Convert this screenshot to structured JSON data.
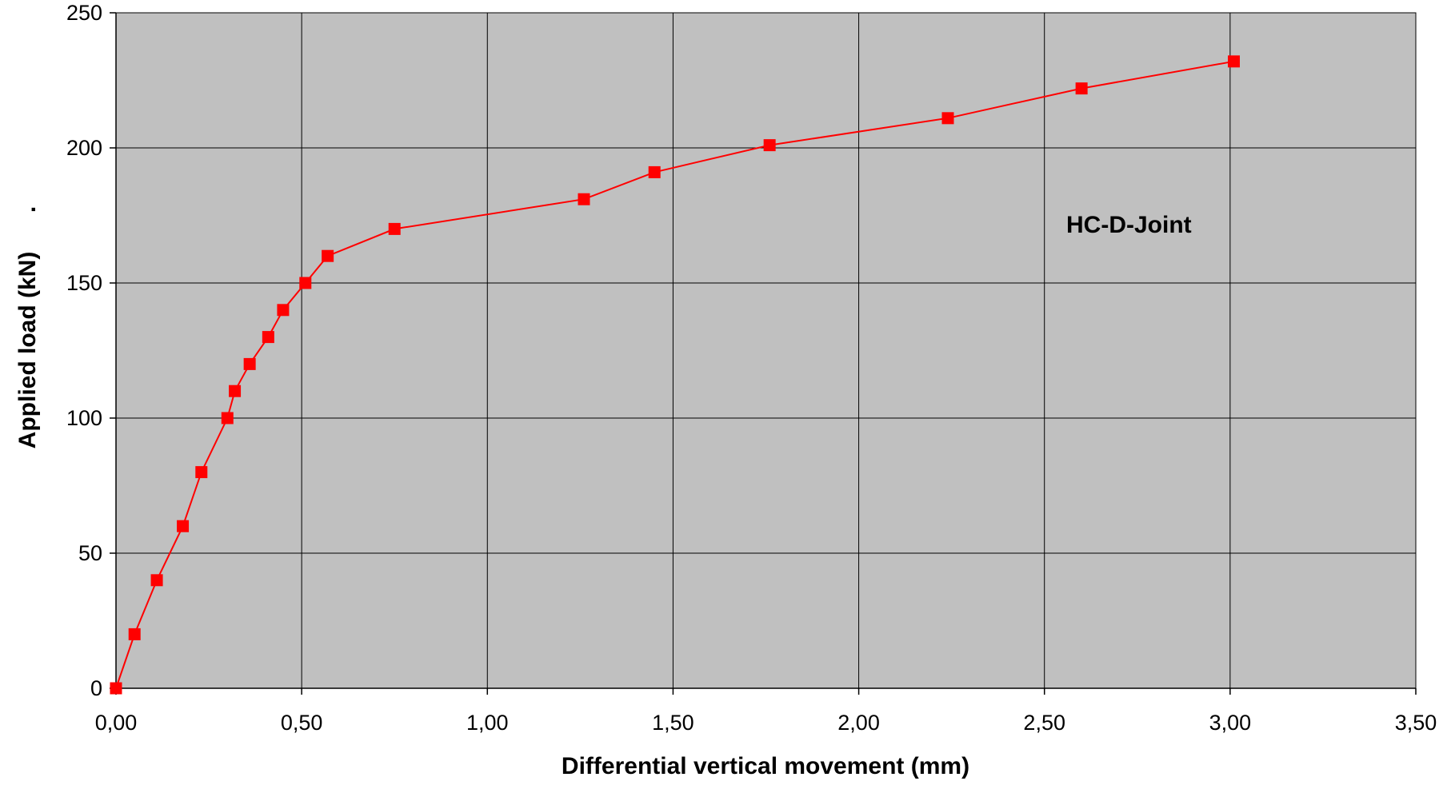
{
  "chart_data": {
    "type": "line",
    "xlabel": "Differential vertical movement (mm)",
    "ylabel": "Applied load (kN)",
    "stray_mark": ".",
    "annotation": "HC-D-Joint",
    "xlim": [
      0,
      3.5
    ],
    "ylim": [
      0,
      250
    ],
    "x_ticks": [
      0,
      0.5,
      1.0,
      1.5,
      2.0,
      2.5,
      3.0,
      3.5
    ],
    "x_tick_labels": [
      "0,00",
      "0,50",
      "1,00",
      "1,50",
      "2,00",
      "2,50",
      "3,00",
      "3,50"
    ],
    "y_ticks": [
      0,
      50,
      100,
      150,
      200,
      250
    ],
    "y_tick_labels": [
      "0",
      "50",
      "100",
      "150",
      "200",
      "250"
    ],
    "grid": true,
    "legend": "none",
    "colors": {
      "series": "#ff0000",
      "plot_background": "#c0c0c0",
      "grid": "#000000"
    },
    "series": [
      {
        "x": [
          0.0,
          0.05,
          0.11,
          0.18,
          0.23,
          0.3,
          0.32,
          0.36,
          0.41,
          0.45,
          0.51,
          0.57,
          0.75,
          1.26,
          1.45,
          1.76,
          2.24,
          2.6,
          3.01
        ],
        "y": [
          0,
          20,
          40,
          60,
          80,
          100,
          110,
          120,
          130,
          140,
          150,
          160,
          170,
          181,
          191,
          201,
          211,
          222,
          232
        ],
        "marker": "square"
      }
    ]
  }
}
